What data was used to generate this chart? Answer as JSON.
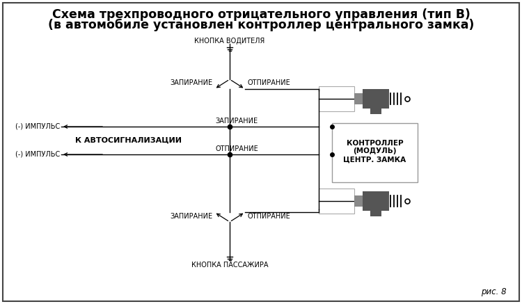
{
  "title_line1": "Схема трехпроводного отрицательного управления (тип В)",
  "title_line2": "(в автомобиле установлен контроллер центрального замка)",
  "bg_color": "#ffffff",
  "line_color": "#000000",
  "fig_caption": "рис. 8",
  "label_knopka_voditelya": "КНОПКА ВОДИТЕЛЯ",
  "label_knopka_passajira": "КНОПКА ПАССАЖИРА",
  "label_minus_impuls_top": "(-) ИМПУЛЬС",
  "label_k_avto": "К АВТОСИГНАЛИЗАЦИИ",
  "label_minus_impuls_bot": "(-) ИМПУЛЬС",
  "label_kontroler": "КОНТРОЛЛЕР\n(МОДУЛЬ)\nЦЕНТР. ЗАМКА",
  "label_zapiranie_top_left": "ЗАПИРАНИЕ",
  "label_otpiranie_top_right": "ОТПИРАНИЕ",
  "label_zapiranie_bot_left": "ЗАПИРАНИЕ",
  "label_otpiranie_bot_right": "ОТПИРАНИЕ",
  "label_zapiranie_mid": "ЗАПИРАНИЕ",
  "label_otpiranie_mid": "ОТПИРАНИЕ"
}
